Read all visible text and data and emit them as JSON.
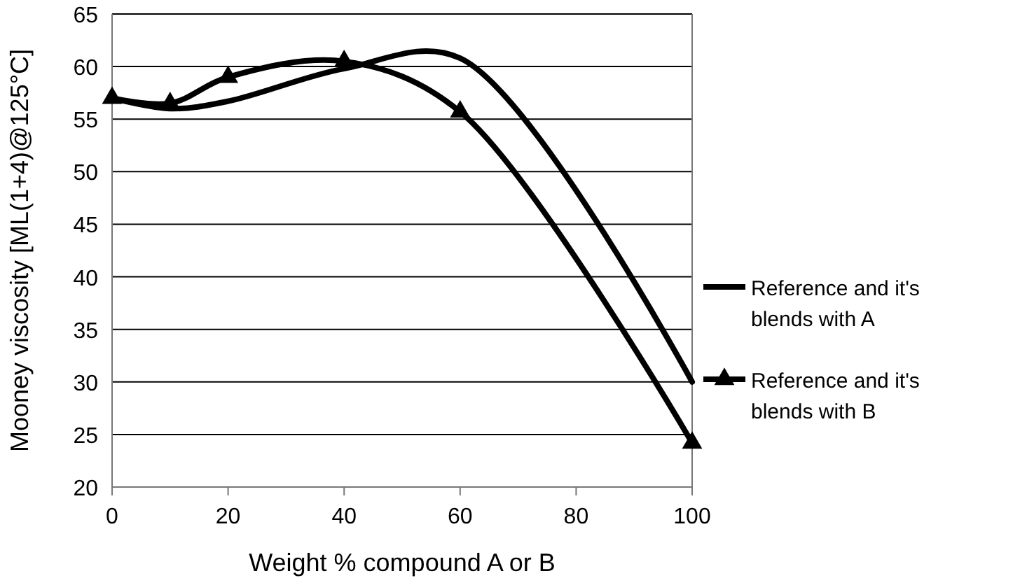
{
  "chart_data": {
    "type": "line",
    "xlabel": "Weight % compound A or B",
    "ylabel": "Mooney viscosity [ML(1+4)@125°C]",
    "xlim": [
      0,
      100
    ],
    "xticks": [
      0,
      20,
      40,
      60,
      80,
      100
    ],
    "ylim": [
      20,
      65
    ],
    "yticks": [
      20,
      25,
      30,
      35,
      40,
      45,
      50,
      55,
      60,
      65
    ],
    "grid": "y",
    "legend": "right",
    "line_style": "solid",
    "series": [
      {
        "name": "Reference and it's blends with A",
        "color": "#000000",
        "marker": "none",
        "x": [
          0,
          10,
          20,
          40,
          60,
          100
        ],
        "values": [
          57,
          56,
          56.7,
          59.8,
          60.8,
          30
        ]
      },
      {
        "name": "Reference and it's blends with B",
        "color": "#000000",
        "marker": "triangle",
        "x": [
          0,
          10,
          20,
          40,
          60,
          100
        ],
        "values": [
          57,
          56.5,
          59,
          60.5,
          55.7,
          24.2
        ]
      }
    ]
  }
}
